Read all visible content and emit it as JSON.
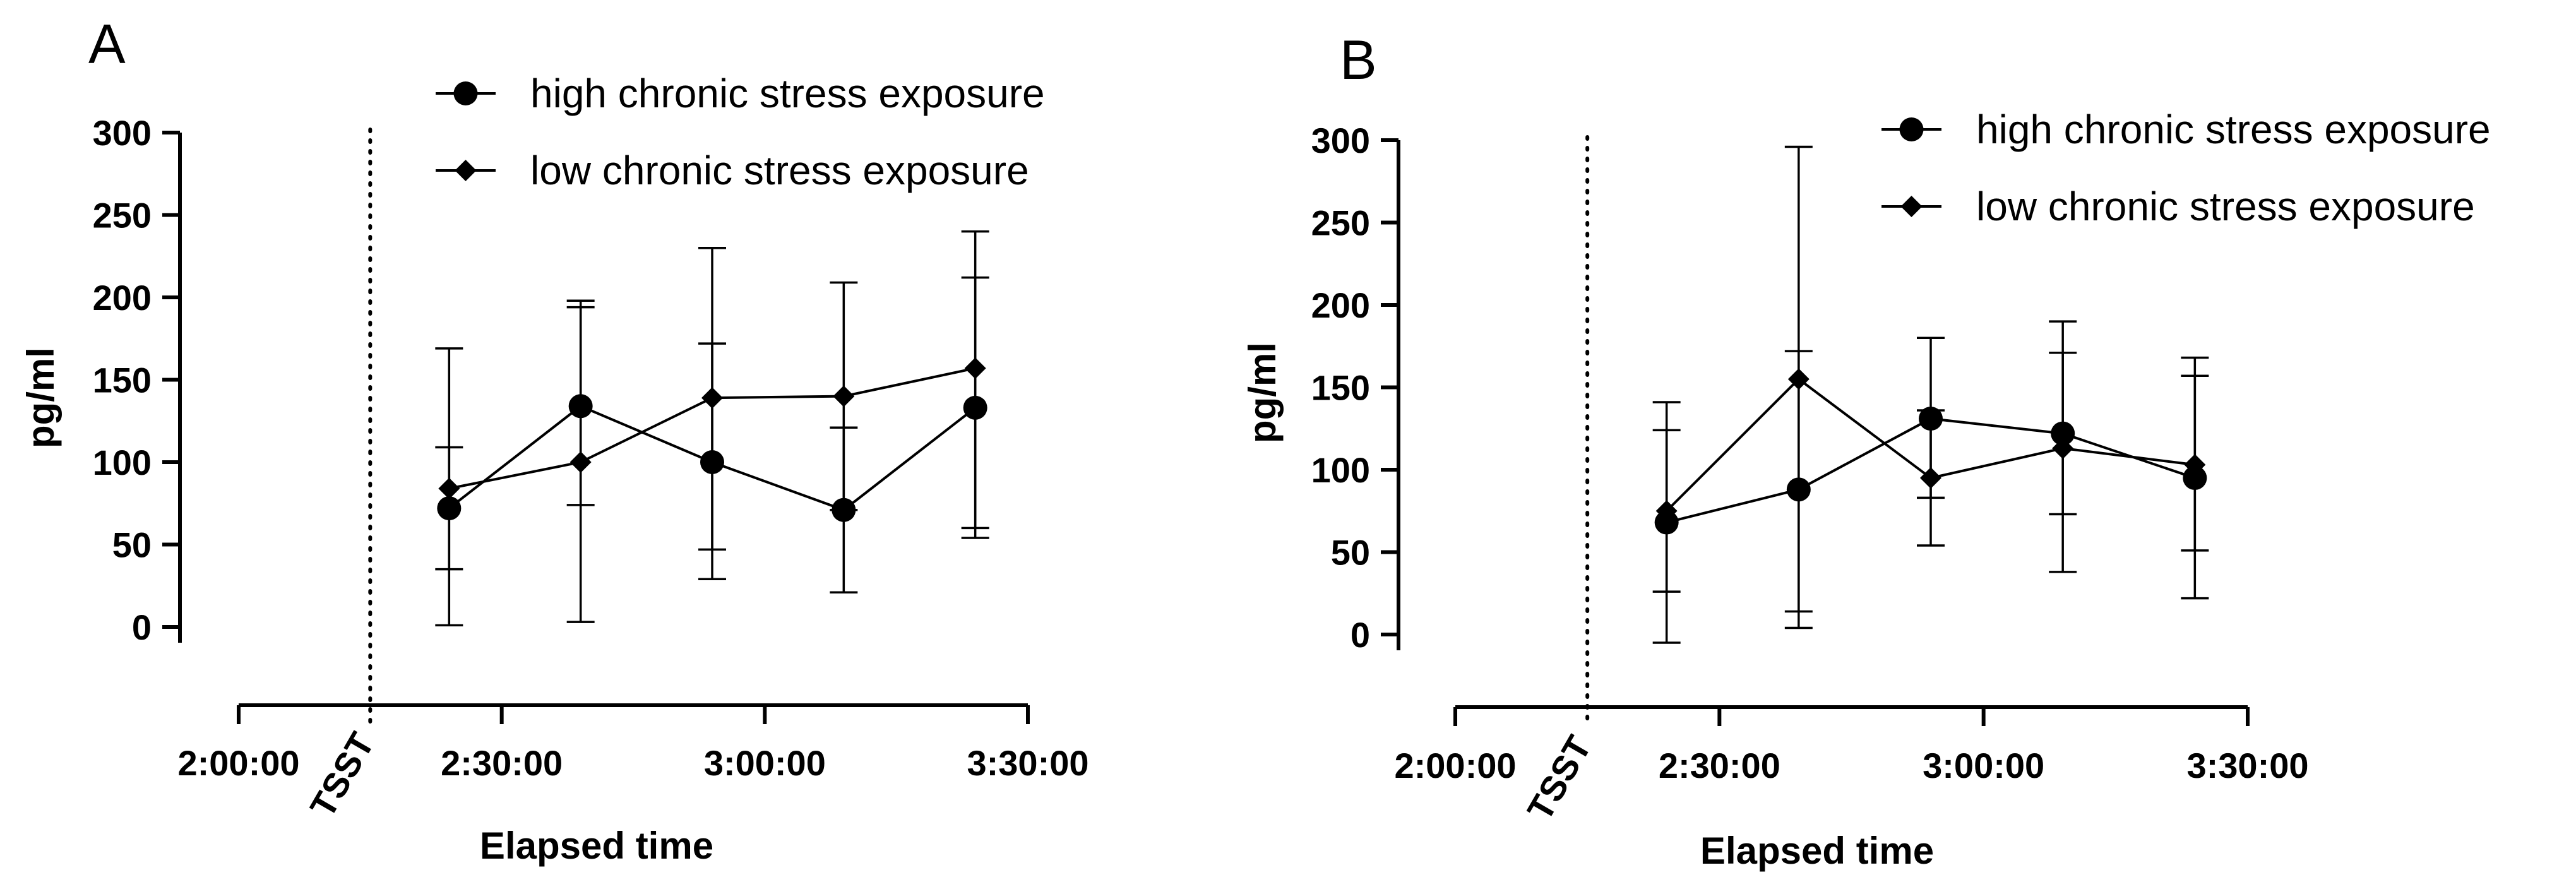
{
  "chart_data": [
    {
      "panel": "A",
      "type": "line",
      "xlabel": "Elapsed time",
      "ylabel": "pg/ml",
      "ylim": [
        0,
        300
      ],
      "yticks": [
        "0",
        "50",
        "100",
        "150",
        "200",
        "250",
        "300"
      ],
      "xlim_minutes": [
        120,
        210
      ],
      "xticks": [
        {
          "value": 120,
          "label": "2:00:00"
        },
        {
          "value": 150,
          "label": "2:30:00"
        },
        {
          "value": 180,
          "label": "3:00:00"
        },
        {
          "value": 210,
          "label": "3:30:00"
        }
      ],
      "event_marker": {
        "value": 135,
        "label": "TSST"
      },
      "legend": [
        "high chronic stress exposure",
        "low chronic stress exposure"
      ],
      "series": [
        {
          "name": "high chronic stress exposure",
          "marker": "circle",
          "x": [
            144,
            159,
            174,
            189,
            204
          ],
          "y": [
            72,
            134,
            100,
            71,
            133
          ],
          "err_low": [
            35,
            74,
            47,
            21,
            60
          ],
          "err_high": [
            109,
            194,
            172,
            121,
            212
          ]
        },
        {
          "name": "low chronic stress exposure",
          "marker": "diamond",
          "x": [
            144,
            159,
            174,
            189,
            204
          ],
          "y": [
            84,
            100,
            139,
            140,
            157
          ],
          "err_low": [
            1,
            3,
            29,
            71,
            54
          ],
          "err_high": [
            169,
            198,
            230,
            209,
            240
          ]
        }
      ]
    },
    {
      "panel": "B",
      "type": "line",
      "xlabel": "Elapsed time",
      "ylabel": "pg/ml",
      "ylim": [
        0,
        300
      ],
      "yticks": [
        "0",
        "50",
        "100",
        "150",
        "200",
        "250",
        "300"
      ],
      "xlim_minutes": [
        120,
        210
      ],
      "xticks": [
        {
          "value": 120,
          "label": "2:00:00"
        },
        {
          "value": 150,
          "label": "2:30:00"
        },
        {
          "value": 180,
          "label": "3:00:00"
        },
        {
          "value": 210,
          "label": "3:30:00"
        }
      ],
      "event_marker": {
        "value": 135,
        "label": "TSST"
      },
      "legend": [
        "high chronic stress exposure",
        "low chronic stress exposure"
      ],
      "series": [
        {
          "name": "high chronic stress exposure",
          "marker": "circle",
          "x": [
            144,
            159,
            174,
            189,
            204
          ],
          "y": [
            68,
            88,
            131,
            122,
            95
          ],
          "err_low": [
            -5,
            4,
            83,
            73,
            51
          ],
          "err_high": [
            141,
            172,
            180,
            171,
            157
          ]
        },
        {
          "name": "low chronic stress exposure",
          "marker": "diamond",
          "x": [
            144,
            159,
            174,
            189,
            204
          ],
          "y": [
            75,
            155,
            95,
            113,
            103
          ],
          "err_low": [
            26,
            14,
            54,
            38,
            22
          ],
          "err_high": [
            124,
            296,
            136,
            190,
            168
          ]
        }
      ]
    }
  ]
}
